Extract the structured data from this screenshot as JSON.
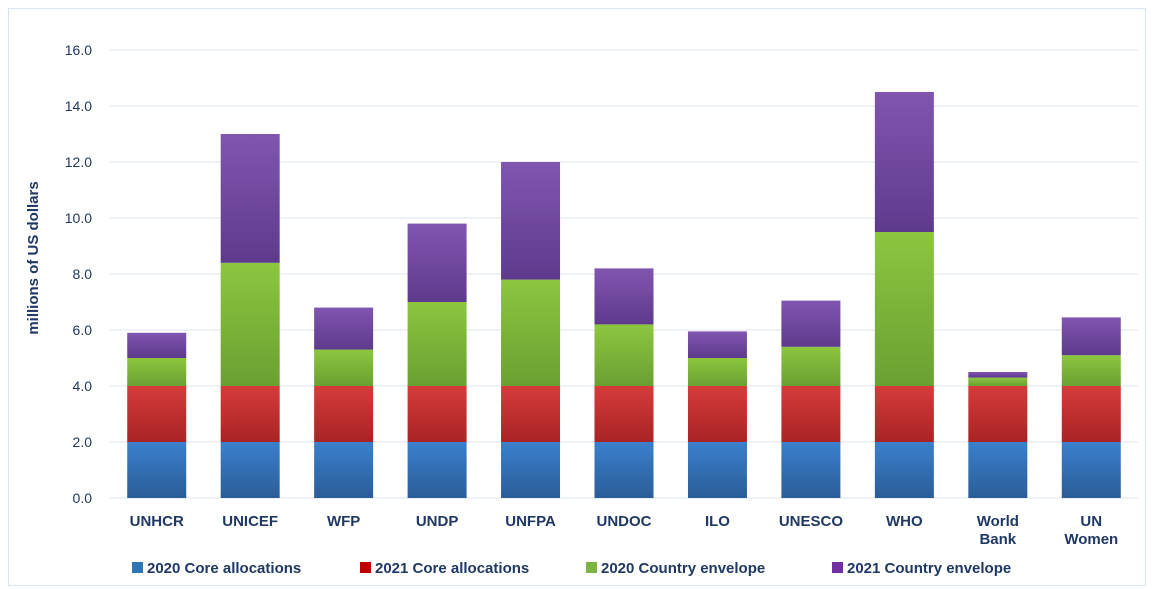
{
  "chart_data": {
    "type": "bar",
    "stacked": true,
    "title": "",
    "xlabel": "",
    "ylabel": "millions of US dollars",
    "ylim": [
      0,
      16
    ],
    "yticks": [
      "0.0",
      "2.0",
      "4.0",
      "6.0",
      "8.0",
      "10.0",
      "12.0",
      "14.0",
      "16.0"
    ],
    "grid": true,
    "legend_position": "bottom",
    "categories": [
      [
        "UNHCR"
      ],
      [
        "UNICEF"
      ],
      [
        "WFP"
      ],
      [
        "UNDP"
      ],
      [
        "UNFPA"
      ],
      [
        "UNDOC"
      ],
      [
        "ILO"
      ],
      [
        "UNESCO"
      ],
      [
        "WHO"
      ],
      [
        "World",
        "Bank"
      ],
      [
        "UN",
        "Women"
      ]
    ],
    "series": [
      {
        "name": "2020 Core allocations",
        "color": "#2e75b6",
        "values": [
          2.0,
          2.0,
          2.0,
          2.0,
          2.0,
          2.0,
          2.0,
          2.0,
          2.0,
          2.0,
          2.0
        ]
      },
      {
        "name": "2021 Core allocations",
        "color": "#c00000",
        "values": [
          2.0,
          2.0,
          2.0,
          2.0,
          2.0,
          2.0,
          2.0,
          2.0,
          2.0,
          2.0,
          2.0
        ]
      },
      {
        "name": "2020 Country envelope",
        "color": "#7cb342",
        "values": [
          1.0,
          4.4,
          1.3,
          3.0,
          3.8,
          2.2,
          1.0,
          1.4,
          5.5,
          0.3,
          1.1
        ]
      },
      {
        "name": "2021 Country envelope",
        "color": "#7030a0",
        "values": [
          0.9,
          4.6,
          1.5,
          2.8,
          4.2,
          2.0,
          0.95,
          1.65,
          5.0,
          0.2,
          1.35
        ]
      }
    ]
  }
}
